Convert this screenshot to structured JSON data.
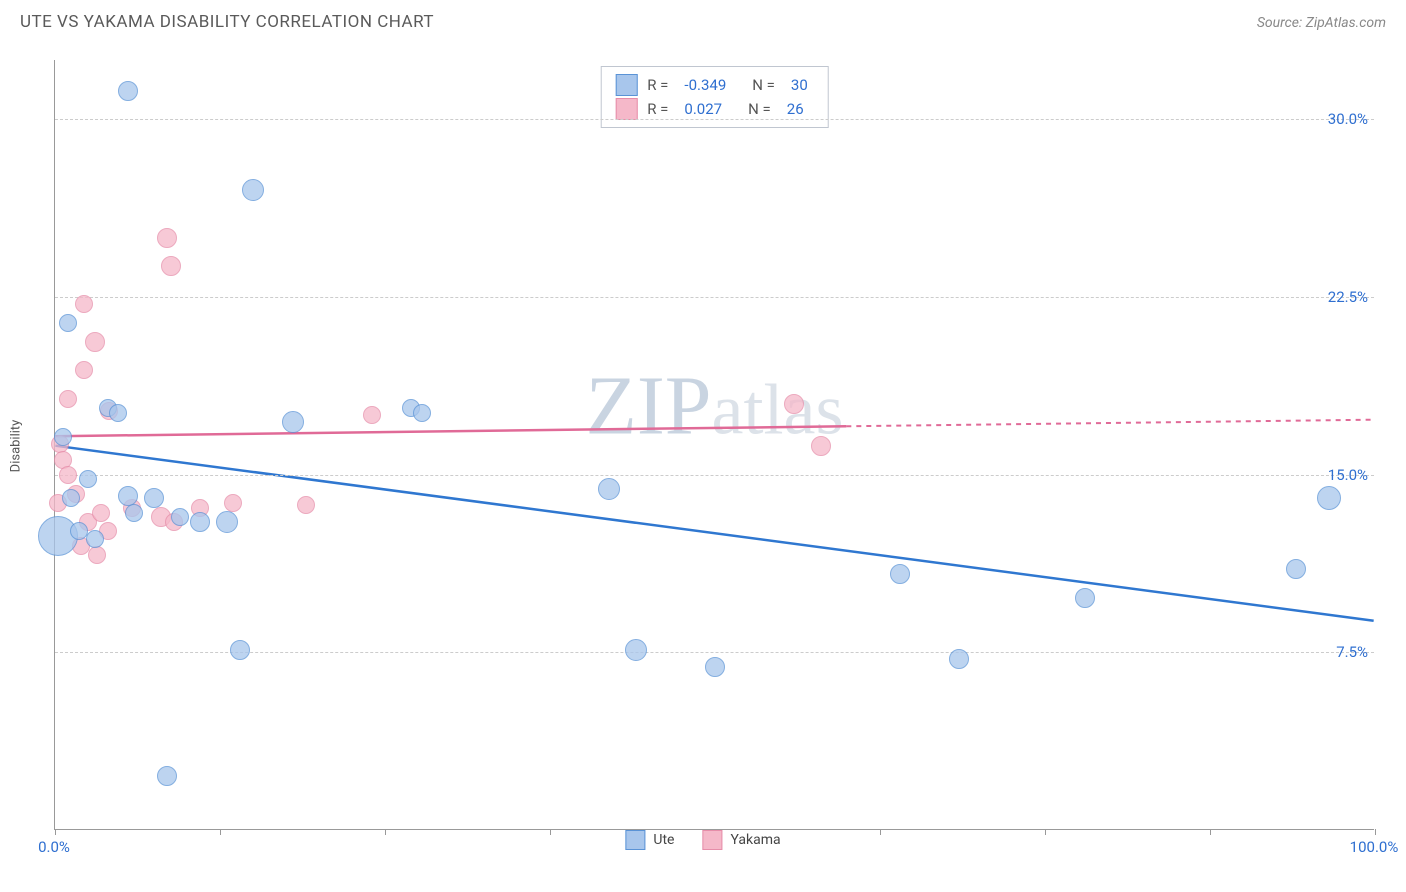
{
  "title": "UTE VS YAKAMA DISABILITY CORRELATION CHART",
  "source": "Source: ZipAtlas.com",
  "watermark_prefix": "ZIP",
  "watermark_suffix": "atlas",
  "y_axis_label": "Disability",
  "colors": {
    "series_a_fill": "#a8c6ec",
    "series_a_stroke": "#5a93d6",
    "series_b_fill": "#f5b8c9",
    "series_b_stroke": "#e68da9",
    "trend_a": "#2f77d0",
    "trend_b": "#e06a97",
    "tick_label": "#2f6fd0",
    "grid": "#cccccc",
    "axis": "#999999",
    "background": "#ffffff"
  },
  "chart": {
    "type": "scatter",
    "xlim": [
      0,
      100
    ],
    "ylim": [
      0,
      32.5
    ],
    "y_ticks": [
      {
        "v": 7.5,
        "label": "7.5%"
      },
      {
        "v": 15.0,
        "label": "15.0%"
      },
      {
        "v": 22.5,
        "label": "22.5%"
      },
      {
        "v": 30.0,
        "label": "30.0%"
      }
    ],
    "x_tick_positions": [
      0,
      12.5,
      25,
      37.5,
      50,
      62.5,
      75,
      87.5,
      100
    ],
    "x_labels": [
      {
        "v": 0,
        "label": "0.0%"
      },
      {
        "v": 100,
        "label": "100.0%"
      }
    ],
    "point_opacity": 0.75,
    "stroke_width": 1.2,
    "default_radius": 10
  },
  "legend_stats": [
    {
      "series": "a",
      "r_label": "R =",
      "r_val": "-0.349",
      "n_label": "N =",
      "n_val": "30"
    },
    {
      "series": "b",
      "r_label": "R =",
      "r_val": "0.027",
      "n_label": "N =",
      "n_val": "26"
    }
  ],
  "series_legend": [
    {
      "series": "a",
      "label": "Ute"
    },
    {
      "series": "b",
      "label": "Yakama"
    }
  ],
  "trend_lines": {
    "a": {
      "x1": 0,
      "y1": 16.2,
      "x2": 100,
      "y2": 8.8,
      "dash_after_x": 100
    },
    "b": {
      "x1": 0,
      "y1": 16.6,
      "x2": 100,
      "y2": 17.3,
      "dash_after_x": 60
    }
  },
  "points_a": [
    {
      "x": 5.5,
      "y": 31.2,
      "r": 10
    },
    {
      "x": 15.0,
      "y": 27.0,
      "r": 11
    },
    {
      "x": 1.0,
      "y": 21.4,
      "r": 9
    },
    {
      "x": 4.0,
      "y": 17.8,
      "r": 9
    },
    {
      "x": 4.8,
      "y": 17.6,
      "r": 9
    },
    {
      "x": 0.6,
      "y": 16.6,
      "r": 9
    },
    {
      "x": 18.0,
      "y": 17.2,
      "r": 11
    },
    {
      "x": 27.0,
      "y": 17.8,
      "r": 9
    },
    {
      "x": 27.8,
      "y": 17.6,
      "r": 9
    },
    {
      "x": 1.2,
      "y": 14.0,
      "r": 9
    },
    {
      "x": 5.5,
      "y": 14.1,
      "r": 10
    },
    {
      "x": 7.5,
      "y": 14.0,
      "r": 10
    },
    {
      "x": 9.5,
      "y": 13.2,
      "r": 9
    },
    {
      "x": 11.0,
      "y": 13.0,
      "r": 10
    },
    {
      "x": 13.0,
      "y": 13.0,
      "r": 11
    },
    {
      "x": 0.2,
      "y": 12.4,
      "r": 20
    },
    {
      "x": 1.8,
      "y": 12.6,
      "r": 9
    },
    {
      "x": 3.0,
      "y": 12.3,
      "r": 9
    },
    {
      "x": 42.0,
      "y": 14.4,
      "r": 11
    },
    {
      "x": 96.5,
      "y": 14.0,
      "r": 12
    },
    {
      "x": 64.0,
      "y": 10.8,
      "r": 10
    },
    {
      "x": 94.0,
      "y": 11.0,
      "r": 10
    },
    {
      "x": 78.0,
      "y": 9.8,
      "r": 10
    },
    {
      "x": 14.0,
      "y": 7.6,
      "r": 10
    },
    {
      "x": 44.0,
      "y": 7.6,
      "r": 11
    },
    {
      "x": 50.0,
      "y": 6.9,
      "r": 10
    },
    {
      "x": 68.5,
      "y": 7.2,
      "r": 10
    },
    {
      "x": 8.5,
      "y": 2.3,
      "r": 10
    },
    {
      "x": 6.0,
      "y": 13.4,
      "r": 9
    },
    {
      "x": 2.5,
      "y": 14.8,
      "r": 9
    }
  ],
  "points_b": [
    {
      "x": 8.5,
      "y": 25.0,
      "r": 10
    },
    {
      "x": 8.8,
      "y": 23.8,
      "r": 10
    },
    {
      "x": 2.2,
      "y": 22.2,
      "r": 9
    },
    {
      "x": 3.0,
      "y": 20.6,
      "r": 10
    },
    {
      "x": 2.2,
      "y": 19.4,
      "r": 9
    },
    {
      "x": 1.0,
      "y": 18.2,
      "r": 9
    },
    {
      "x": 4.1,
      "y": 17.7,
      "r": 9
    },
    {
      "x": 0.4,
      "y": 16.3,
      "r": 9
    },
    {
      "x": 0.6,
      "y": 15.6,
      "r": 9
    },
    {
      "x": 1.0,
      "y": 15.0,
      "r": 9
    },
    {
      "x": 24.0,
      "y": 17.5,
      "r": 9
    },
    {
      "x": 56.0,
      "y": 18.0,
      "r": 10
    },
    {
      "x": 58.0,
      "y": 16.2,
      "r": 10
    },
    {
      "x": 1.6,
      "y": 14.2,
      "r": 9
    },
    {
      "x": 2.5,
      "y": 13.0,
      "r": 9
    },
    {
      "x": 3.5,
      "y": 13.4,
      "r": 9
    },
    {
      "x": 4.0,
      "y": 12.6,
      "r": 9
    },
    {
      "x": 5.8,
      "y": 13.6,
      "r": 9
    },
    {
      "x": 8.0,
      "y": 13.2,
      "r": 10
    },
    {
      "x": 9.0,
      "y": 13.0,
      "r": 9
    },
    {
      "x": 11.0,
      "y": 13.6,
      "r": 9
    },
    {
      "x": 13.5,
      "y": 13.8,
      "r": 9
    },
    {
      "x": 19.0,
      "y": 13.7,
      "r": 9
    },
    {
      "x": 2.0,
      "y": 12.0,
      "r": 9
    },
    {
      "x": 3.2,
      "y": 11.6,
      "r": 9
    },
    {
      "x": 0.2,
      "y": 13.8,
      "r": 9
    }
  ]
}
